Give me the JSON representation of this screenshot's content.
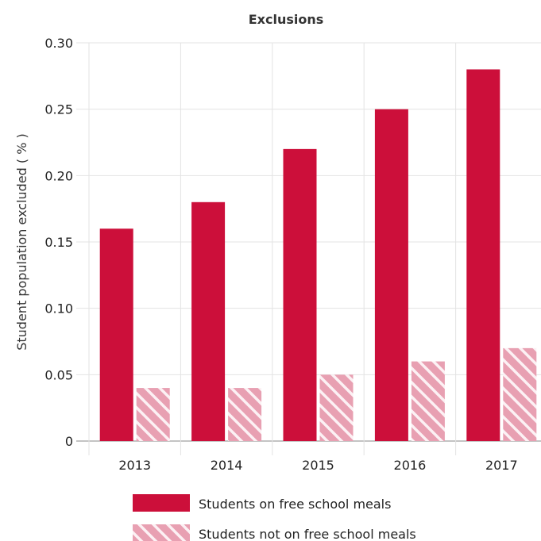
{
  "chart_data": {
    "type": "bar",
    "title": "Exclusions",
    "ylabel": "Student population excluded ( % )",
    "xlabel": "",
    "categories": [
      "2013",
      "2014",
      "2015",
      "2016",
      "2017"
    ],
    "series": [
      {
        "name": "Students on free school meals",
        "values": [
          0.16,
          0.18,
          0.22,
          0.25,
          0.28
        ],
        "color": "#cc0f3a"
      },
      {
        "name": "Students not on free school meals",
        "values": [
          0.04,
          0.04,
          0.05,
          0.06,
          0.07
        ],
        "color": "#e8a0b2",
        "pattern": "hatched"
      }
    ],
    "ylim": [
      0,
      0.3
    ],
    "yticks": [
      "0",
      "0.05",
      "0.10",
      "0.15",
      "0.20",
      "0.25",
      "0.30"
    ],
    "grid": true,
    "legend_position": "bottom"
  }
}
